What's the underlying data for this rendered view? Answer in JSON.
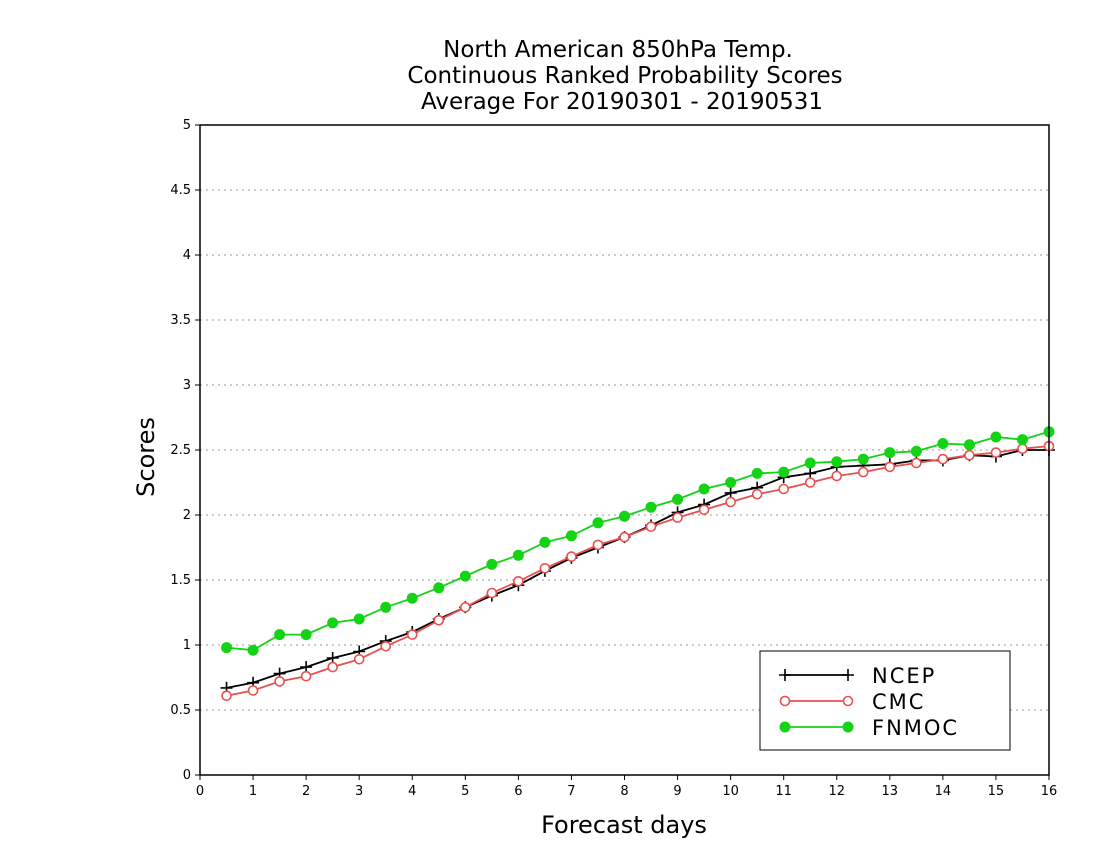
{
  "chart_data": {
    "type": "line",
    "title": [
      "North American 850hPa Temp.",
      "Continuous Ranked Probability Scores",
      "Average For 20190301 - 20190531"
    ],
    "xlabel": "Forecast days",
    "ylabel": "Scores",
    "xlim": [
      0,
      16
    ],
    "ylim": [
      0,
      5
    ],
    "x_ticks": [
      0,
      1,
      2,
      3,
      4,
      5,
      6,
      7,
      8,
      9,
      10,
      11,
      12,
      13,
      14,
      15,
      16
    ],
    "y_ticks": [
      0,
      0.5,
      1,
      1.5,
      2,
      2.5,
      3,
      3.5,
      4,
      4.5,
      5
    ],
    "y_tick_labels": [
      "0",
      "0.5",
      "1",
      "1.5",
      "2",
      "2.5",
      "3",
      "3.5",
      "4",
      "4.5",
      "5"
    ],
    "grid": "dotted horizontal",
    "legend_position": "bottom-right",
    "x": [
      0.5,
      1.0,
      1.5,
      2.0,
      2.5,
      3.0,
      3.5,
      4.0,
      4.5,
      5.0,
      5.5,
      6.0,
      6.5,
      7.0,
      7.5,
      8.0,
      8.5,
      9.0,
      9.5,
      10.0,
      10.5,
      11.0,
      11.5,
      12.0,
      12.5,
      13.0,
      13.5,
      14.0,
      14.5,
      15.0,
      15.5,
      16.0
    ],
    "series": [
      {
        "name": "NCEP",
        "color": "#000000",
        "marker": "plus",
        "values": [
          0.67,
          0.71,
          0.78,
          0.83,
          0.9,
          0.95,
          1.03,
          1.1,
          1.2,
          1.29,
          1.38,
          1.46,
          1.57,
          1.67,
          1.75,
          1.83,
          1.92,
          2.02,
          2.08,
          2.17,
          2.21,
          2.29,
          2.32,
          2.37,
          2.38,
          2.39,
          2.42,
          2.42,
          2.46,
          2.45,
          2.5,
          2.5
        ]
      },
      {
        "name": "CMC",
        "color": "#e8504f",
        "marker": "open-circle",
        "values": [
          0.61,
          0.65,
          0.72,
          0.76,
          0.83,
          0.89,
          0.99,
          1.08,
          1.19,
          1.29,
          1.4,
          1.49,
          1.59,
          1.68,
          1.77,
          1.83,
          1.91,
          1.98,
          2.04,
          2.1,
          2.16,
          2.2,
          2.25,
          2.3,
          2.33,
          2.37,
          2.4,
          2.43,
          2.46,
          2.48,
          2.51,
          2.53
        ]
      },
      {
        "name": "FNMOC",
        "color": "#14d214",
        "marker": "filled-circle",
        "values": [
          0.98,
          0.96,
          1.08,
          1.08,
          1.17,
          1.2,
          1.29,
          1.36,
          1.44,
          1.53,
          1.62,
          1.69,
          1.79,
          1.84,
          1.94,
          1.99,
          2.06,
          2.12,
          2.2,
          2.25,
          2.32,
          2.33,
          2.4,
          2.41,
          2.43,
          2.48,
          2.49,
          2.55,
          2.54,
          2.6,
          2.58,
          2.64
        ]
      }
    ]
  }
}
